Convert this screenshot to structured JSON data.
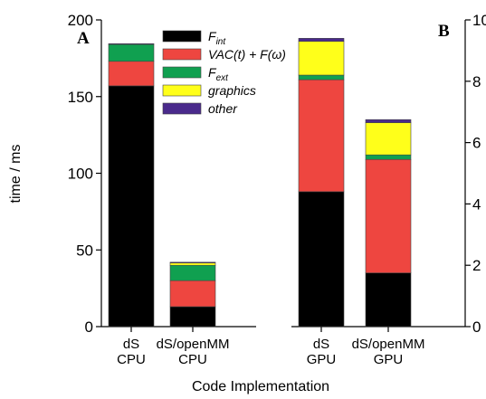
{
  "chart_data": [
    {
      "panel": "A",
      "type": "bar",
      "stacked": true,
      "ylabel": "time / ms",
      "ylim": [
        0,
        200
      ],
      "yticks": [
        0,
        50,
        100,
        150,
        200
      ],
      "categories": [
        [
          "dS",
          "CPU"
        ],
        [
          "dS/openMM",
          "CPU"
        ]
      ],
      "series": [
        {
          "name": "F_int",
          "values": [
            157,
            13
          ]
        },
        {
          "name": "VAC(t) + F(ω)",
          "values": [
            16,
            17
          ]
        },
        {
          "name": "F_ext",
          "values": [
            11,
            10
          ]
        },
        {
          "name": "graphics",
          "values": [
            0,
            1.5
          ]
        },
        {
          "name": "other",
          "values": [
            0.5,
            0.5
          ]
        }
      ]
    },
    {
      "panel": "B",
      "type": "bar",
      "stacked": true,
      "ylim": [
        0,
        10
      ],
      "yticks": [
        0,
        2,
        4,
        6,
        8,
        10
      ],
      "categories": [
        [
          "dS",
          "GPU"
        ],
        [
          "dS/openMM",
          "GPU"
        ]
      ],
      "series": [
        {
          "name": "F_int",
          "values": [
            4.4,
            1.75
          ]
        },
        {
          "name": "VAC(t) + F(ω)",
          "values": [
            3.65,
            3.7
          ]
        },
        {
          "name": "F_ext",
          "values": [
            0.15,
            0.15
          ]
        },
        {
          "name": "graphics",
          "values": [
            1.1,
            1.05
          ]
        },
        {
          "name": "other",
          "values": [
            0.1,
            0.1
          ]
        }
      ]
    }
  ],
  "xlabel": "Code Implementation",
  "legend": {
    "placement": "top-center",
    "entries": [
      {
        "main": "F",
        "sub": "int",
        "color": "#000000"
      },
      {
        "main": "VAC(t) + F(ω)",
        "sub": "",
        "color": "#ee4640"
      },
      {
        "main": "F",
        "sub": "ext",
        "color": "#10a050"
      },
      {
        "main": "graphics",
        "sub": "",
        "color": "#ffff1a"
      },
      {
        "main": "other",
        "sub": "",
        "color": "#4a2a8c"
      }
    ]
  },
  "colors": [
    "#000000",
    "#ee4640",
    "#10a050",
    "#ffff1a",
    "#4a2a8c"
  ]
}
